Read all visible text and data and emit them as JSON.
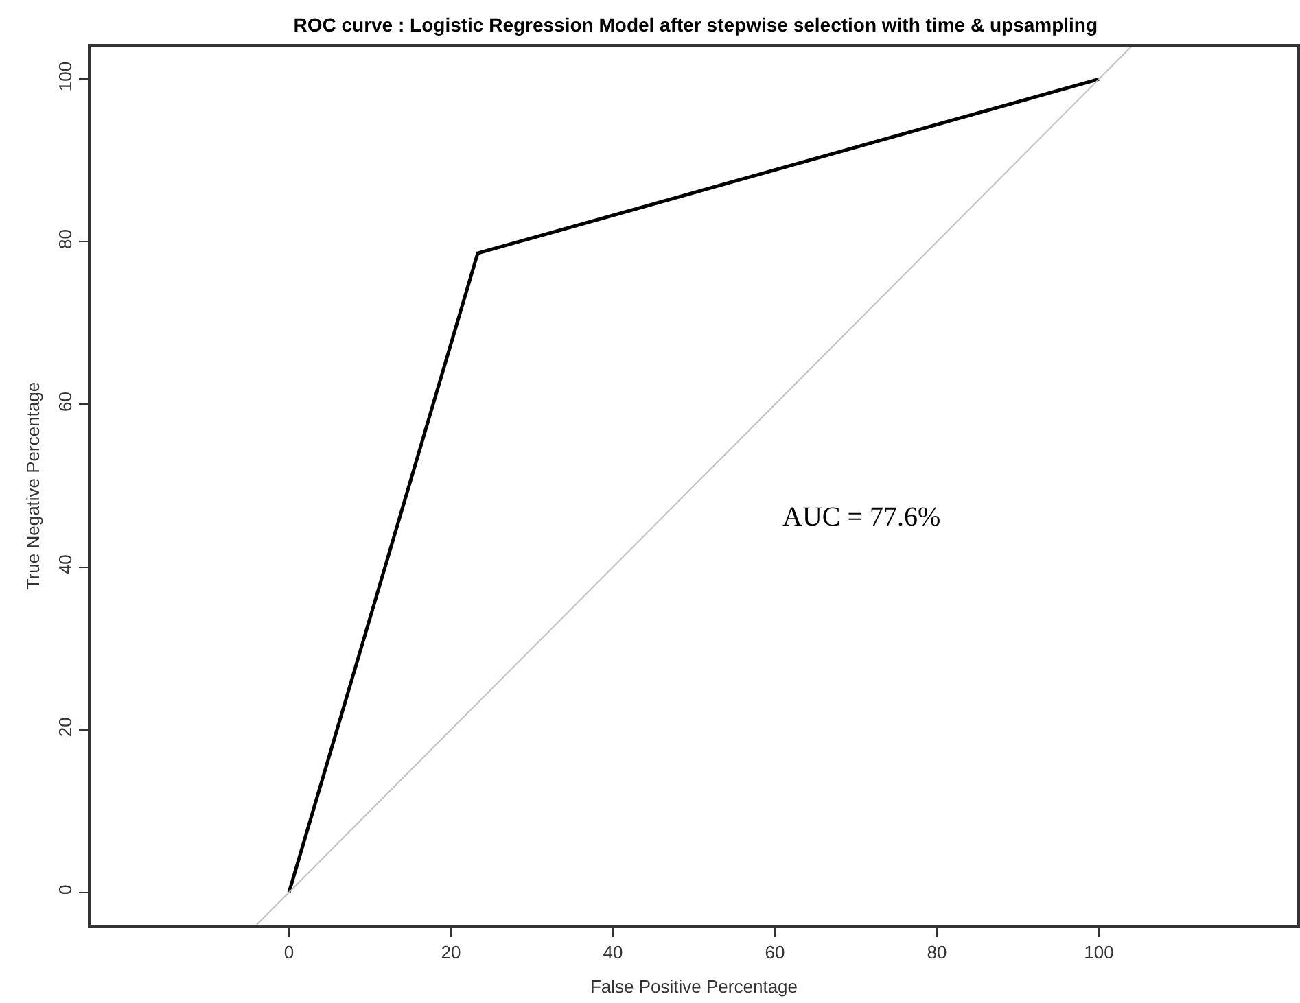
{
  "chart_data": {
    "type": "line",
    "title": "ROC curve : Logistic Regression Model after stepwise selection with time & upsampling",
    "xlabel": "False Positive Percentage",
    "ylabel": "True Negative Percentage",
    "series": [
      {
        "x": [
          0,
          23.3,
          100
        ],
        "values": [
          0,
          78.6,
          100
        ],
        "color": "#000000"
      },
      {
        "x": [
          -4,
          104
        ],
        "values": [
          -4,
          104
        ],
        "color": "#c0c0c0"
      }
    ],
    "xlim": [
      -24.5,
      124.5
    ],
    "xticks": [
      0,
      20,
      40,
      60,
      80,
      100
    ],
    "ylim": [
      -4,
      104
    ],
    "yticks": [
      0,
      20,
      40,
      60,
      80,
      100
    ],
    "annotations": [
      "AUC = 77.6%"
    ],
    "marker": "none",
    "line_style": "solid"
  }
}
